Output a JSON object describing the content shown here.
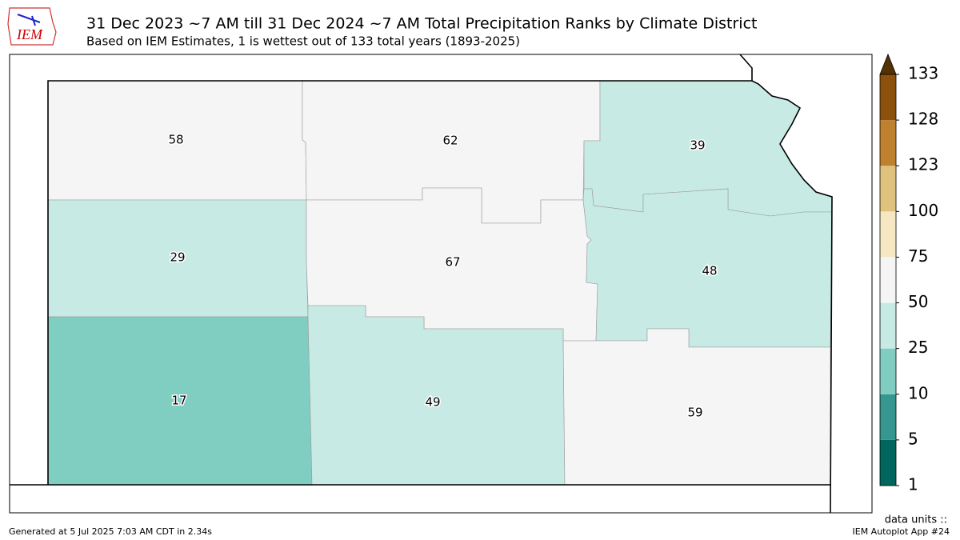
{
  "header": {
    "logo": "IEM",
    "title": "31 Dec 2023 ~7 AM till 31 Dec 2024 ~7 AM Total Precipitation Ranks by Climate District",
    "subtitle": "Based on IEM Estimates, 1 is wettest out of 133 total years (1893-2025)"
  },
  "districts": [
    {
      "rank": 58
    },
    {
      "rank": 62
    },
    {
      "rank": 39
    },
    {
      "rank": 29
    },
    {
      "rank": 67
    },
    {
      "rank": 48
    },
    {
      "rank": 17
    },
    {
      "rank": 49
    },
    {
      "rank": 59
    }
  ],
  "colorbar": {
    "levels": [
      1,
      5,
      10,
      25,
      50,
      75,
      100,
      123,
      128,
      133
    ],
    "colors": [
      "#01665e",
      "#35978f",
      "#80cdc1",
      "#c7eae5",
      "#f5f5f5",
      "#f6e8c3",
      "#dfc27d",
      "#bf812d",
      "#8c510a"
    ],
    "extend_color": "#543005"
  },
  "footer": {
    "generated": "Generated at 5 Jul 2025 7:03 AM CDT in 2.34s",
    "units": "data units ::",
    "app": "IEM Autoplot App #24"
  }
}
